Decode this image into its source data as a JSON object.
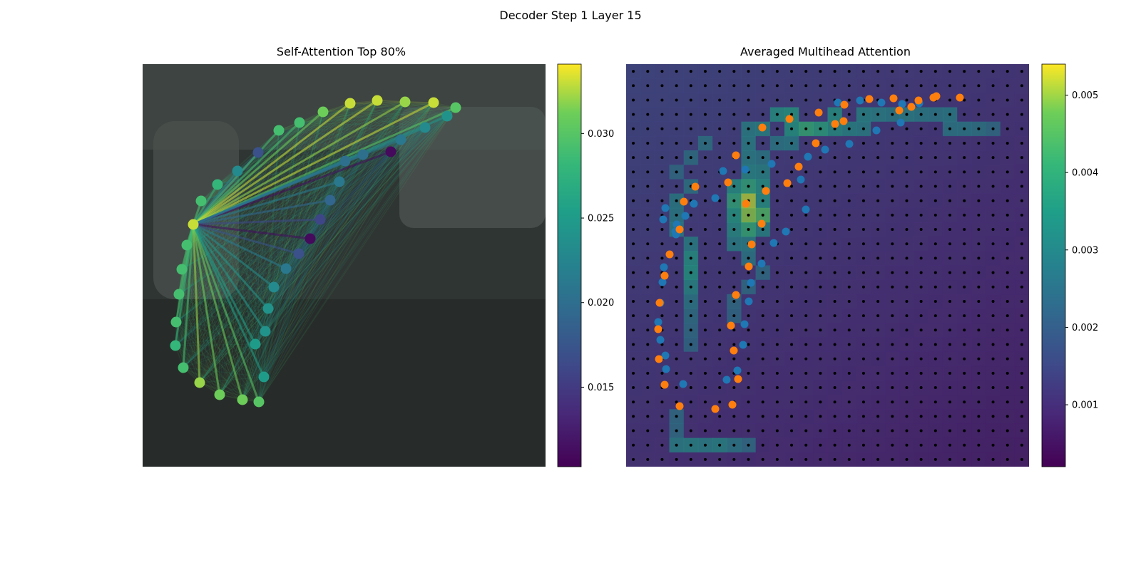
{
  "figure": {
    "suptitle": "Decoder Step 1 Layer 15",
    "left_title": "Self-Attention Top 80%",
    "right_title": "Averaged Multihead Attention"
  },
  "chart_data": [
    {
      "type": "scatter",
      "title": "Self-Attention Top 80%",
      "description_points": "polyline control points (image coordinates, 0-565 range); color value from colorbar",
      "xlim": [
        0,
        565
      ],
      "ylim": [
        565,
        0
      ],
      "colorbar": {
        "min": 0.0103,
        "max": 0.0341,
        "ticks": [
          0.015,
          0.02,
          0.025,
          0.03
        ],
        "tick_labels": [
          "0.015",
          "0.020",
          "0.025",
          "0.030"
        ],
        "colormap": "viridis"
      },
      "query_point": {
        "x": 71,
        "y": 225,
        "value": 0.033
      },
      "points": [
        {
          "x": 71,
          "y": 225,
          "v": 0.033
        },
        {
          "x": 62,
          "y": 254,
          "v": 0.029
        },
        {
          "x": 55,
          "y": 288,
          "v": 0.029
        },
        {
          "x": 51,
          "y": 323,
          "v": 0.029
        },
        {
          "x": 47,
          "y": 362,
          "v": 0.029
        },
        {
          "x": 46,
          "y": 395,
          "v": 0.028
        },
        {
          "x": 57,
          "y": 426,
          "v": 0.029
        },
        {
          "x": 80,
          "y": 447,
          "v": 0.032
        },
        {
          "x": 108,
          "y": 464,
          "v": 0.031
        },
        {
          "x": 140,
          "y": 471,
          "v": 0.031
        },
        {
          "x": 163,
          "y": 474,
          "v": 0.03
        },
        {
          "x": 82,
          "y": 192,
          "v": 0.029
        },
        {
          "x": 105,
          "y": 169,
          "v": 0.028
        },
        {
          "x": 133,
          "y": 150,
          "v": 0.023
        },
        {
          "x": 162,
          "y": 124,
          "v": 0.017
        },
        {
          "x": 191,
          "y": 93,
          "v": 0.029
        },
        {
          "x": 220,
          "y": 82,
          "v": 0.029
        },
        {
          "x": 253,
          "y": 67,
          "v": 0.031
        },
        {
          "x": 291,
          "y": 55,
          "v": 0.033
        },
        {
          "x": 329,
          "y": 51,
          "v": 0.033
        },
        {
          "x": 368,
          "y": 53,
          "v": 0.032
        },
        {
          "x": 408,
          "y": 54,
          "v": 0.033
        },
        {
          "x": 439,
          "y": 61,
          "v": 0.03
        },
        {
          "x": 427,
          "y": 73,
          "v": 0.024
        },
        {
          "x": 396,
          "y": 89,
          "v": 0.023
        },
        {
          "x": 362,
          "y": 106,
          "v": 0.021
        },
        {
          "x": 348,
          "y": 123,
          "v": 0.011
        },
        {
          "x": 309,
          "y": 127,
          "v": 0.02
        },
        {
          "x": 284,
          "y": 136,
          "v": 0.02
        },
        {
          "x": 276,
          "y": 165,
          "v": 0.021
        },
        {
          "x": 263,
          "y": 191,
          "v": 0.019
        },
        {
          "x": 249,
          "y": 218,
          "v": 0.016
        },
        {
          "x": 235,
          "y": 245,
          "v": 0.011
        },
        {
          "x": 219,
          "y": 266,
          "v": 0.017
        },
        {
          "x": 201,
          "y": 287,
          "v": 0.021
        },
        {
          "x": 184,
          "y": 313,
          "v": 0.023
        },
        {
          "x": 176,
          "y": 343,
          "v": 0.024
        },
        {
          "x": 172,
          "y": 375,
          "v": 0.024
        },
        {
          "x": 158,
          "y": 393,
          "v": 0.025
        },
        {
          "x": 170,
          "y": 439,
          "v": 0.025
        }
      ]
    },
    {
      "type": "heatmap",
      "title": "Averaged Multihead Attention",
      "grid_size": [
        28,
        28
      ],
      "colorbar": {
        "min": 0.0002,
        "max": 0.0054,
        "ticks": [
          0.001,
          0.002,
          0.003,
          0.004,
          0.005
        ],
        "tick_labels": [
          "0.001",
          "0.002",
          "0.003",
          "0.004",
          "0.005"
        ],
        "colormap": "viridis"
      },
      "hot_cells": [
        {
          "row": 9,
          "col": 8,
          "v": 0.0051
        },
        {
          "row": 10,
          "col": 8,
          "v": 0.0049
        },
        {
          "row": 10,
          "col": 9,
          "v": 0.0044
        },
        {
          "row": 9,
          "col": 7,
          "v": 0.0039
        },
        {
          "row": 8,
          "col": 8,
          "v": 0.0039
        },
        {
          "row": 11,
          "col": 8,
          "v": 0.004
        },
        {
          "row": 4,
          "col": 12,
          "v": 0.004
        },
        {
          "row": 4,
          "col": 13,
          "v": 0.0037
        },
        {
          "row": 3,
          "col": 11,
          "v": 0.0035
        },
        {
          "row": 4,
          "col": 11,
          "v": 0.0034
        },
        {
          "row": 3,
          "col": 14,
          "v": 0.0033
        },
        {
          "row": 4,
          "col": 14,
          "v": 0.0032
        },
        {
          "row": 4,
          "col": 15,
          "v": 0.003
        },
        {
          "row": 4,
          "col": 16,
          "v": 0.0029
        },
        {
          "row": 3,
          "col": 16,
          "v": 0.003
        },
        {
          "row": 3,
          "col": 17,
          "v": 0.0029
        },
        {
          "row": 3,
          "col": 18,
          "v": 0.0028
        },
        {
          "row": 3,
          "col": 19,
          "v": 0.0029
        },
        {
          "row": 3,
          "col": 20,
          "v": 0.0028
        },
        {
          "row": 3,
          "col": 21,
          "v": 0.0027
        },
        {
          "row": 3,
          "col": 22,
          "v": 0.0028
        },
        {
          "row": 4,
          "col": 22,
          "v": 0.0027
        },
        {
          "row": 4,
          "col": 23,
          "v": 0.0027
        },
        {
          "row": 4,
          "col": 24,
          "v": 0.0026
        },
        {
          "row": 4,
          "col": 25,
          "v": 0.0024
        },
        {
          "row": 3,
          "col": 10,
          "v": 0.0033
        },
        {
          "row": 4,
          "col": 9,
          "v": 0.003
        },
        {
          "row": 4,
          "col": 8,
          "v": 0.0029
        },
        {
          "row": 5,
          "col": 8,
          "v": 0.0029
        },
        {
          "row": 8,
          "col": 7,
          "v": 0.0033
        },
        {
          "row": 10,
          "col": 7,
          "v": 0.0035
        },
        {
          "row": 11,
          "col": 7,
          "v": 0.0032
        },
        {
          "row": 12,
          "col": 7,
          "v": 0.0029
        },
        {
          "row": 8,
          "col": 9,
          "v": 0.0033
        },
        {
          "row": 9,
          "col": 9,
          "v": 0.0033
        },
        {
          "row": 11,
          "col": 9,
          "v": 0.003
        },
        {
          "row": 12,
          "col": 8,
          "v": 0.0029
        },
        {
          "row": 13,
          "col": 8,
          "v": 0.0027
        },
        {
          "row": 13,
          "col": 4,
          "v": 0.0033
        },
        {
          "row": 14,
          "col": 4,
          "v": 0.0034
        },
        {
          "row": 15,
          "col": 4,
          "v": 0.0031
        },
        {
          "row": 12,
          "col": 4,
          "v": 0.0029
        },
        {
          "row": 11,
          "col": 3,
          "v": 0.0029
        },
        {
          "row": 10,
          "col": 3,
          "v": 0.0028
        },
        {
          "row": 9,
          "col": 3,
          "v": 0.0028
        },
        {
          "row": 8,
          "col": 4,
          "v": 0.0026
        },
        {
          "row": 26,
          "col": 3,
          "v": 0.0029
        },
        {
          "row": 26,
          "col": 4,
          "v": 0.003
        },
        {
          "row": 26,
          "col": 5,
          "v": 0.0029
        },
        {
          "row": 26,
          "col": 6,
          "v": 0.003
        },
        {
          "row": 26,
          "col": 7,
          "v": 0.0027
        },
        {
          "row": 26,
          "col": 8,
          "v": 0.0024
        },
        {
          "row": 25,
          "col": 3,
          "v": 0.0024
        },
        {
          "row": 24,
          "col": 3,
          "v": 0.0024
        },
        {
          "row": 5,
          "col": 5,
          "v": 0.0026
        },
        {
          "row": 6,
          "col": 4,
          "v": 0.0025
        },
        {
          "row": 7,
          "col": 3,
          "v": 0.0024
        },
        {
          "row": 5,
          "col": 10,
          "v": 0.0027
        },
        {
          "row": 5,
          "col": 11,
          "v": 0.0028
        },
        {
          "row": 6,
          "col": 8,
          "v": 0.0029
        },
        {
          "row": 7,
          "col": 8,
          "v": 0.0031
        },
        {
          "row": 7,
          "col": 9,
          "v": 0.003
        },
        {
          "row": 6,
          "col": 9,
          "v": 0.0027
        },
        {
          "row": 14,
          "col": 9,
          "v": 0.0024
        },
        {
          "row": 15,
          "col": 8,
          "v": 0.0024
        },
        {
          "row": 16,
          "col": 7,
          "v": 0.0024
        },
        {
          "row": 17,
          "col": 7,
          "v": 0.0023
        },
        {
          "row": 16,
          "col": 4,
          "v": 0.0027
        },
        {
          "row": 17,
          "col": 4,
          "v": 0.0025
        },
        {
          "row": 18,
          "col": 4,
          "v": 0.0024
        },
        {
          "row": 19,
          "col": 4,
          "v": 0.0023
        }
      ],
      "base_value": 0.0012,
      "series": [
        {
          "name": "",
          "color": "#1f77b4",
          "points": [
            [
              297,
              54
            ],
            [
              328,
              51
            ],
            [
              358,
              54
            ],
            [
              387,
              56
            ],
            [
              411,
              55
            ],
            [
              385,
              82
            ],
            [
              351,
              93
            ],
            [
              313,
              112
            ],
            [
              279,
              120
            ],
            [
              255,
              130
            ],
            [
              204,
              140
            ],
            [
              167,
              148
            ],
            [
              136,
              150
            ],
            [
              125,
              188
            ],
            [
              95,
              196
            ],
            [
              55,
              202
            ],
            [
              52,
              218
            ],
            [
              70,
              239
            ],
            [
              245,
              162
            ],
            [
              252,
              204
            ],
            [
              224,
              235
            ],
            [
              207,
              251
            ],
            [
              190,
              280
            ],
            [
              175,
              307
            ],
            [
              172,
              333
            ],
            [
              166,
              365
            ],
            [
              164,
              394
            ],
            [
              156,
              430
            ],
            [
              141,
              443
            ],
            [
              80,
              449
            ],
            [
              56,
              428
            ],
            [
              55,
              409
            ],
            [
              48,
              387
            ],
            [
              45,
              362
            ],
            [
              48,
              335
            ],
            [
              51,
              306
            ],
            [
              53,
              285
            ],
            [
              71,
              225
            ],
            [
              69,
              235
            ],
            [
              83,
              213
            ]
          ]
        },
        {
          "name": "",
          "color": "#ff7f0e",
          "points": [
            [
              468,
              47
            ],
            [
              431,
              47
            ],
            [
              410,
              51
            ],
            [
              375,
              48
            ],
            [
              341,
              49
            ],
            [
              306,
              57
            ],
            [
              270,
              68
            ],
            [
              229,
              77
            ],
            [
              191,
              89
            ],
            [
              154,
              128
            ],
            [
              143,
              166
            ],
            [
              97,
              172
            ],
            [
              81,
              193
            ],
            [
              75,
              232
            ],
            [
              61,
              267
            ],
            [
              54,
              297
            ],
            [
              47,
              335
            ],
            [
              45,
              372
            ],
            [
              46,
              414
            ],
            [
              54,
              450
            ],
            [
              75,
              480
            ],
            [
              125,
              484
            ],
            [
              149,
              478
            ],
            [
              157,
              442
            ],
            [
              151,
              402
            ],
            [
              147,
              367
            ],
            [
              154,
              324
            ],
            [
              172,
              284
            ],
            [
              176,
              253
            ],
            [
              190,
              224
            ],
            [
              168,
              196
            ],
            [
              196,
              178
            ],
            [
              226,
              167
            ],
            [
              242,
              144
            ],
            [
              266,
              111
            ],
            [
              293,
              84
            ],
            [
              305,
              80
            ],
            [
              383,
              65
            ],
            [
              400,
              60
            ],
            [
              435,
              45
            ]
          ]
        }
      ]
    }
  ]
}
